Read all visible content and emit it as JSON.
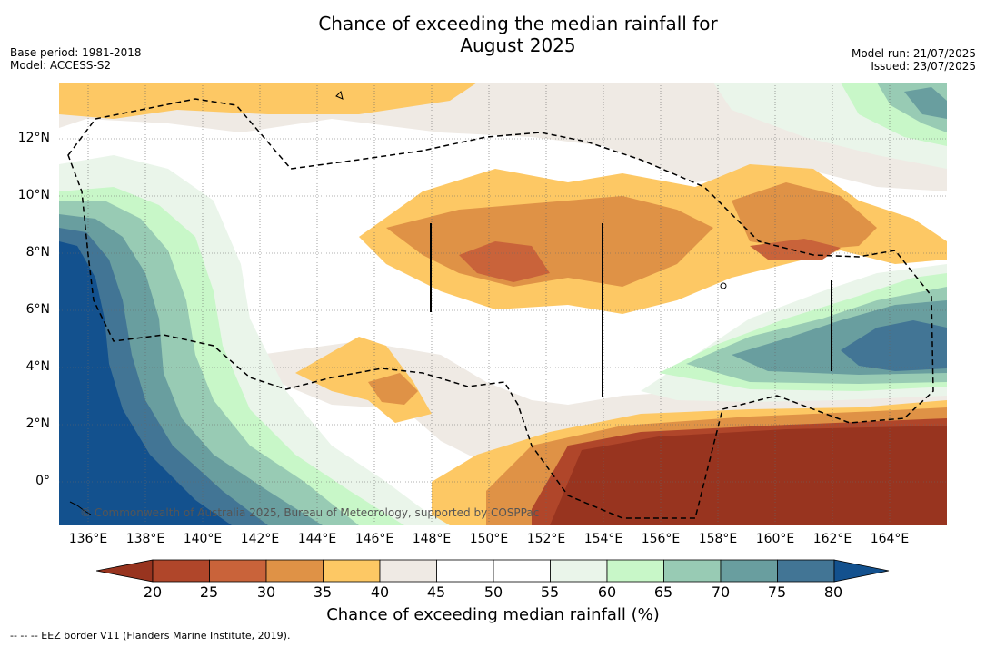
{
  "header": {
    "title_line1": "Chance of exceeding the median rainfall for",
    "title_line2": "August 2025",
    "base_period": "Base period: 1981-2018",
    "model": "Model: ACCESS-S2",
    "model_run": "Model run: 21/07/2025",
    "issued": "Issued: 23/07/2025"
  },
  "map": {
    "x_ticks": [
      "136°E",
      "138°E",
      "140°E",
      "142°E",
      "144°E",
      "146°E",
      "148°E",
      "150°E",
      "152°E",
      "154°E",
      "156°E",
      "158°E",
      "160°E",
      "162°E",
      "164°E"
    ],
    "y_ticks": [
      "12°N",
      "10°N",
      "8°N",
      "6°N",
      "4°N",
      "2°N",
      "0°"
    ],
    "lon_range": [
      135,
      166
    ],
    "lat_range": [
      -1.5,
      14
    ],
    "copyright": "© Commonwealth of Australia 2025, Bureau of Meteorology, supported by COSPPac",
    "eez_legend": "-- -- -- EEZ border V11 (Flanders Marine Institute, 2019)."
  },
  "colorbar": {
    "title": "Chance of exceeding median rainfall (%)",
    "labels": [
      "20",
      "25",
      "30",
      "35",
      "40",
      "45",
      "50",
      "55",
      "60",
      "65",
      "70",
      "75",
      "80"
    ],
    "colors": [
      "#98341f",
      "#b0462a",
      "#c9633a",
      "#df9246",
      "#fdc864",
      "#efeae4",
      "#ffffff",
      "#ffffff",
      "#eaf5ea",
      "#c8f7c8",
      "#98cbb4",
      "#699e9f",
      "#427595",
      "#13518e"
    ]
  }
}
